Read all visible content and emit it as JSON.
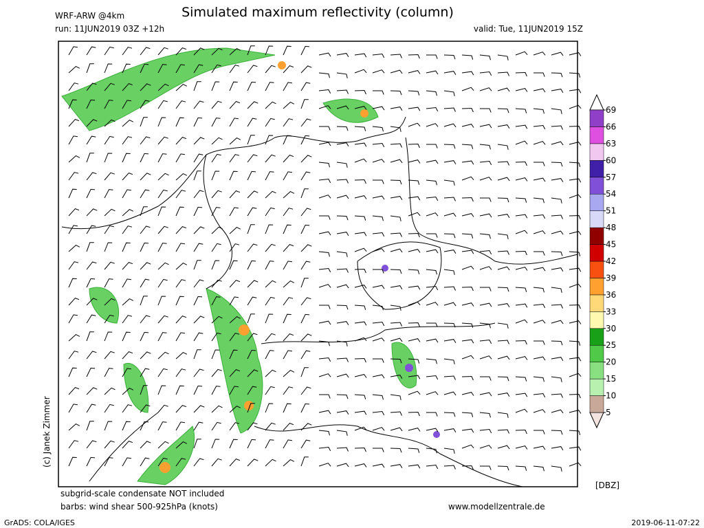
{
  "header": {
    "model": "WRF-ARW @4km",
    "title": "Simulated maximum reflectivity (column)",
    "run": "run: 11JUN2019 03Z +12h",
    "valid": "valid: Tue, 11JUN2019 15Z"
  },
  "footer": {
    "note1": "subgrid-scale condensate NOT included",
    "note2": "barbs: wind shear 500-925hPa (knots)",
    "website": "www.modellzentrale.de",
    "copyright": "(c) Janek Zimmer",
    "grads": "GrADS: COLA/IGES",
    "timestamp": "2019-06-11-07:22"
  },
  "colorbar": {
    "unit": "[DBZ]",
    "ticks": [
      5,
      10,
      15,
      20,
      25,
      30,
      33,
      36,
      39,
      42,
      45,
      48,
      51,
      54,
      57,
      60,
      63,
      66,
      69
    ],
    "colors": [
      "#c8a898",
      "#b8f0b0",
      "#88e080",
      "#50c848",
      "#18a018",
      "#fff8b0",
      "#ffd878",
      "#ffa030",
      "#f85010",
      "#d00000",
      "#900000",
      "#d8d8f8",
      "#a8a8f0",
      "#8050d8",
      "#4020a8",
      "#f0c8f0",
      "#e050e0",
      "#9040c8"
    ],
    "below_color": "#f4e4e0",
    "above_color": "#ffffff"
  }
}
